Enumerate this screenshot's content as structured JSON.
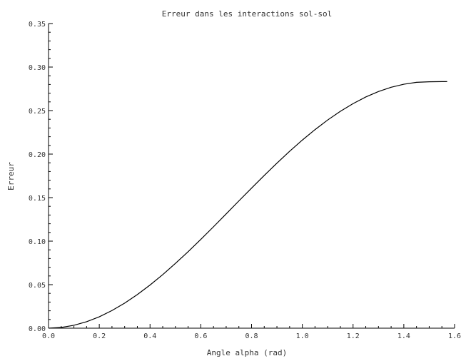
{
  "chart_data": {
    "type": "line",
    "title": "Erreur dans les interactions sol-sol",
    "xlabel": "Angle alpha (rad)",
    "ylabel": "Erreur",
    "xlim": [
      0.0,
      1.6
    ],
    "ylim": [
      0.0,
      0.35
    ],
    "xticks": [
      "0.0",
      "0.2",
      "0.4",
      "0.6",
      "0.8",
      "1.0",
      "1.2",
      "1.4",
      "1.6"
    ],
    "yticks": [
      "0.00",
      "0.05",
      "0.10",
      "0.15",
      "0.20",
      "0.25",
      "0.30",
      "0.35"
    ],
    "grid": false,
    "line_color": "#000000",
    "series": [
      {
        "x": [
          0.0,
          0.05,
          0.1,
          0.15,
          0.2,
          0.25,
          0.3,
          0.35,
          0.4,
          0.45,
          0.5,
          0.55,
          0.6,
          0.65,
          0.7,
          0.75,
          0.8,
          0.85,
          0.9,
          0.95,
          1.0,
          1.05,
          1.1,
          1.15,
          1.2,
          1.25,
          1.3,
          1.35,
          1.4,
          1.45,
          1.5,
          1.55,
          1.5708
        ],
        "y": [
          0.0,
          0.0008,
          0.0033,
          0.0074,
          0.0131,
          0.0203,
          0.0288,
          0.0386,
          0.0496,
          0.0615,
          0.0744,
          0.0879,
          0.102,
          0.1165,
          0.1313,
          0.1462,
          0.1609,
          0.1755,
          0.1896,
          0.2032,
          0.2161,
          0.2281,
          0.2392,
          0.2492,
          0.258,
          0.2656,
          0.2719,
          0.2768,
          0.2803,
          0.2825,
          0.2831,
          0.2833,
          0.2833
        ]
      }
    ]
  }
}
